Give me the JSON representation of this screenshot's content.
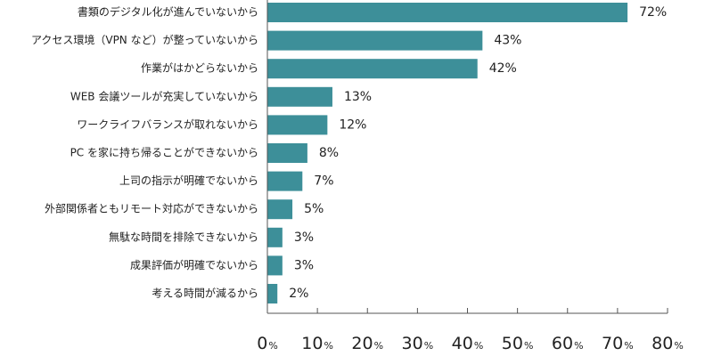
{
  "chart_data": {
    "type": "bar",
    "orientation": "horizontal",
    "categories": [
      "書類のデジタル化が進んでいないから",
      "アクセス環境（VPN など）が整っていないから",
      "作業がはかどらないから",
      "WEB 会議ツールが充実していないから",
      "ワークライフバランスが取れないから",
      "PC を家に持ち帰ることができないから",
      "上司の指示が明確でないから",
      "外部関係者ともリモート対応ができないから",
      "無駄な時間を排除できないから",
      "成果評価が明確でないから",
      "考える時間が減るから"
    ],
    "values": [
      72,
      43,
      42,
      13,
      12,
      8,
      7,
      5,
      3,
      3,
      2
    ],
    "value_labels": [
      "72%",
      "43%",
      "42%",
      "13%",
      "12%",
      "8%",
      "7%",
      "5%",
      "3%",
      "3%",
      "2%"
    ],
    "xlim": [
      0,
      80
    ],
    "xticks": [
      0,
      10,
      20,
      30,
      40,
      50,
      60,
      70,
      80
    ],
    "tick_unit": "%",
    "bar_color": "#3d8f99",
    "grid": false,
    "legend": "none",
    "title": "",
    "xlabel": "",
    "ylabel": ""
  }
}
